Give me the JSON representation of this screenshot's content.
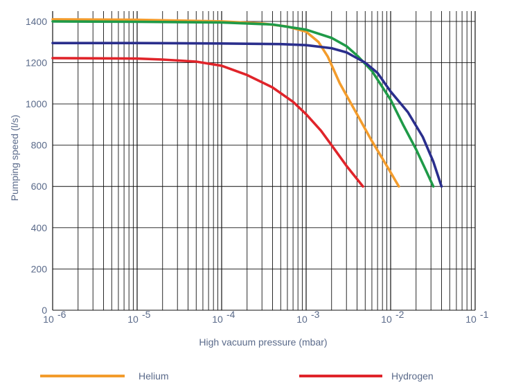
{
  "chart_data": {
    "type": "line",
    "xlabel": "High vacuum pressure (mbar)",
    "ylabel": "Pumping speed (l/s)",
    "x_scale": "log",
    "xlim": [
      1e-06,
      0.1
    ],
    "ylim": [
      0,
      1450
    ],
    "x_ticks": [
      {
        "value": 1e-06,
        "base": "10",
        "exp": "-6"
      },
      {
        "value": 1e-05,
        "base": "10",
        "exp": "-5"
      },
      {
        "value": 0.0001,
        "base": "10",
        "exp": "-4"
      },
      {
        "value": 0.001,
        "base": "10",
        "exp": "-3"
      },
      {
        "value": 0.01,
        "base": "10",
        "exp": "-2"
      },
      {
        "value": 0.1,
        "base": "10",
        "exp": "-1"
      }
    ],
    "y_ticks": [
      "0",
      "200",
      "400",
      "600",
      "800",
      "1000",
      "1200",
      "1400"
    ],
    "grid": true,
    "legend_position": "bottom",
    "series": [
      {
        "name": "Helium",
        "color": "#f39c2c",
        "x": [
          1e-06,
          1e-05,
          0.0001,
          0.0003,
          0.0006,
          0.001,
          0.0014,
          0.0018,
          0.0025,
          0.004,
          0.006,
          0.009,
          0.0125
        ],
        "y": [
          1410,
          1408,
          1400,
          1390,
          1375,
          1350,
          1300,
          1230,
          1100,
          950,
          820,
          700,
          600
        ]
      },
      {
        "name": "Hydrogen",
        "color": "#e0242a",
        "x": [
          1e-06,
          1e-05,
          2e-05,
          5e-05,
          0.0001,
          0.0002,
          0.0004,
          0.0007,
          0.001,
          0.0015,
          0.002,
          0.003,
          0.0047
        ],
        "y": [
          1222,
          1220,
          1215,
          1205,
          1185,
          1140,
          1080,
          1010,
          950,
          870,
          800,
          700,
          600
        ]
      },
      {
        "name": "",
        "color": "#1f9a48",
        "x": [
          1e-06,
          1e-05,
          0.0001,
          0.0004,
          0.001,
          0.002,
          0.003,
          0.004,
          0.006,
          0.01,
          0.014,
          0.02,
          0.026,
          0.032
        ],
        "y": [
          1400,
          1398,
          1395,
          1385,
          1360,
          1320,
          1280,
          1235,
          1160,
          1020,
          900,
          780,
          680,
          600
        ]
      },
      {
        "name": "",
        "color": "#2a2e8c",
        "x": [
          1e-06,
          1e-05,
          0.0001,
          0.0005,
          0.001,
          0.002,
          0.003,
          0.005,
          0.007,
          0.01,
          0.016,
          0.024,
          0.032,
          0.04
        ],
        "y": [
          1295,
          1295,
          1293,
          1290,
          1285,
          1270,
          1250,
          1200,
          1150,
          1060,
          960,
          840,
          720,
          600
        ]
      }
    ],
    "legend": [
      {
        "label": "Helium",
        "color": "#f39c2c"
      },
      {
        "label": "Hydrogen",
        "color": "#e0242a"
      }
    ]
  }
}
